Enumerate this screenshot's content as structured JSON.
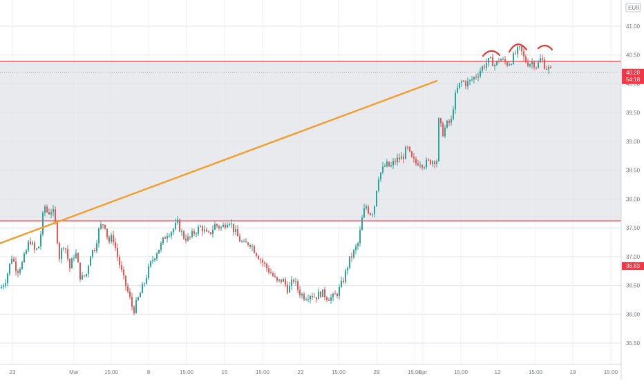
{
  "currency_badge": "EUR",
  "price_labels": {
    "current_price": "40.20",
    "countdown": "54:18",
    "marker_price": "36.83"
  },
  "colors": {
    "up": "#26a69a",
    "down": "#ef5350",
    "zone_fill": "#e1e3e8",
    "zone_border": "#f23645",
    "trendline": "#f0a030",
    "marker_label_bg": "#f23645"
  },
  "chart_data": {
    "type": "candlestick",
    "y_axis": {
      "range": [
        35.3,
        41.3
      ],
      "ticks": [
        "35.50",
        "36.00",
        "36.50",
        "37.00",
        "37.50",
        "38.00",
        "38.50",
        "39.00",
        "39.50",
        "40.00",
        "40.50",
        "41.00"
      ],
      "grid": true,
      "position": "right"
    },
    "x_axis": {
      "ticks": [
        "23",
        "Mar",
        "15:00",
        "8",
        "15:00",
        "15",
        "15:00",
        "22",
        "15:00",
        "29",
        "15:00",
        "Apr",
        "15:00",
        "12",
        "15:00",
        "19",
        "15:00"
      ]
    },
    "zone": {
      "low": 37.62,
      "high": 40.39
    },
    "current_price_line": 40.2,
    "trendline": {
      "start_value": 37.23,
      "end_value": 40.05
    },
    "annotations": [
      "arc-top-1",
      "arc-top-2",
      "arc-top-3"
    ],
    "candle_path": [
      [
        0,
        36.45
      ],
      [
        8,
        36.62
      ],
      [
        16,
        37.0
      ],
      [
        24,
        36.75
      ],
      [
        32,
        36.9
      ],
      [
        42,
        37.3
      ],
      [
        50,
        37.08
      ],
      [
        56,
        37.2
      ],
      [
        63,
        37.9
      ],
      [
        68,
        37.75
      ],
      [
        75,
        37.82
      ],
      [
        80,
        37.5
      ],
      [
        85,
        37.0
      ],
      [
        92,
        37.25
      ],
      [
        100,
        36.8
      ],
      [
        108,
        37.1
      ],
      [
        116,
        36.6
      ],
      [
        124,
        36.7
      ],
      [
        130,
        37.05
      ],
      [
        136,
        37.15
      ],
      [
        143,
        37.5
      ],
      [
        150,
        37.6
      ],
      [
        156,
        37.25
      ],
      [
        162,
        37.35
      ],
      [
        170,
        36.95
      ],
      [
        178,
        36.6
      ],
      [
        185,
        36.35
      ],
      [
        192,
        36.05
      ],
      [
        200,
        36.3
      ],
      [
        208,
        36.55
      ],
      [
        216,
        36.85
      ],
      [
        224,
        37.05
      ],
      [
        232,
        37.2
      ],
      [
        240,
        37.4
      ],
      [
        248,
        37.45
      ],
      [
        256,
        37.58
      ],
      [
        264,
        37.35
      ],
      [
        272,
        37.3
      ],
      [
        280,
        37.42
      ],
      [
        290,
        37.52
      ],
      [
        300,
        37.35
      ],
      [
        310,
        37.55
      ],
      [
        320,
        37.5
      ],
      [
        330,
        37.65
      ],
      [
        338,
        37.45
      ],
      [
        345,
        37.3
      ],
      [
        352,
        37.2
      ],
      [
        360,
        37.25
      ],
      [
        368,
        37.1
      ],
      [
        376,
        36.95
      ],
      [
        384,
        36.82
      ],
      [
        392,
        36.7
      ],
      [
        400,
        36.55
      ],
      [
        408,
        36.6
      ],
      [
        416,
        36.42
      ],
      [
        424,
        36.6
      ],
      [
        432,
        36.38
      ],
      [
        440,
        36.3
      ],
      [
        448,
        36.35
      ],
      [
        456,
        36.3
      ],
      [
        464,
        36.38
      ],
      [
        472,
        36.3
      ],
      [
        480,
        36.28
      ],
      [
        488,
        36.38
      ],
      [
        496,
        36.6
      ],
      [
        504,
        36.92
      ],
      [
        512,
        37.1
      ],
      [
        518,
        37.25
      ],
      [
        522,
        37.6
      ],
      [
        528,
        37.9
      ],
      [
        534,
        37.75
      ],
      [
        540,
        37.8
      ],
      [
        546,
        38.38
      ],
      [
        552,
        38.5
      ],
      [
        558,
        38.6
      ],
      [
        564,
        38.55
      ],
      [
        570,
        38.65
      ],
      [
        576,
        38.7
      ],
      [
        582,
        38.72
      ],
      [
        588,
        38.9
      ],
      [
        594,
        38.7
      ],
      [
        600,
        38.62
      ],
      [
        606,
        38.65
      ],
      [
        612,
        38.6
      ],
      [
        620,
        38.65
      ],
      [
        626,
        38.67
      ],
      [
        632,
        38.68
      ],
      [
        634,
        39.35
      ],
      [
        640,
        39.15
      ],
      [
        646,
        39.3
      ],
      [
        652,
        39.35
      ],
      [
        656,
        39.7
      ],
      [
        662,
        39.95
      ],
      [
        668,
        40.05
      ],
      [
        674,
        40.0
      ],
      [
        680,
        40.05
      ],
      [
        686,
        40.12
      ],
      [
        692,
        40.2
      ],
      [
        698,
        40.3
      ],
      [
        704,
        40.38
      ],
      [
        710,
        40.4
      ],
      [
        716,
        40.32
      ],
      [
        722,
        40.45
      ],
      [
        728,
        40.38
      ],
      [
        734,
        40.35
      ],
      [
        740,
        40.42
      ],
      [
        746,
        40.55
      ],
      [
        752,
        40.6
      ],
      [
        758,
        40.42
      ],
      [
        764,
        40.35
      ],
      [
        770,
        40.38
      ],
      [
        776,
        40.3
      ],
      [
        782,
        40.45
      ],
      [
        788,
        40.3
      ],
      [
        794,
        40.25
      ],
      [
        797,
        40.2
      ]
    ]
  }
}
